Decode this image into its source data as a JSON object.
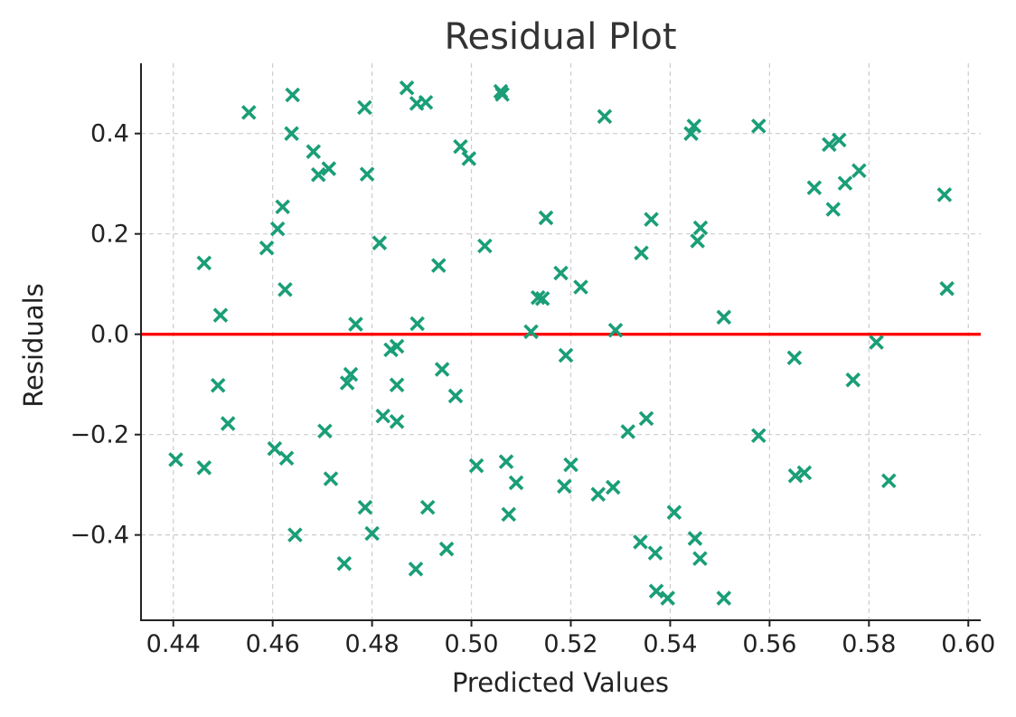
{
  "chart_data": {
    "type": "scatter",
    "title": "Residual Plot",
    "xlabel": "Predicted Values",
    "ylabel": "Residuals",
    "xlim": [
      0.4335,
      0.6025
    ],
    "ylim": [
      -0.57,
      0.54
    ],
    "x_ticks": [
      0.44,
      0.46,
      0.48,
      0.5,
      0.52,
      0.54,
      0.56,
      0.58,
      0.6
    ],
    "x_tick_labels": [
      "0.44",
      "0.46",
      "0.48",
      "0.50",
      "0.52",
      "0.54",
      "0.56",
      "0.58",
      "0.60"
    ],
    "y_ticks": [
      -0.4,
      -0.2,
      0.0,
      0.2,
      0.4
    ],
    "y_tick_labels": [
      "−0.4",
      "−0.2",
      "0.0",
      "0.2",
      "0.4"
    ],
    "grid": true,
    "marker": "x",
    "marker_color": "#1a9e77",
    "reference_line": {
      "y": 0.0,
      "color": "#ff0000"
    },
    "points": [
      [
        0.4405,
        -0.25
      ],
      [
        0.4462,
        0.142
      ],
      [
        0.4462,
        -0.266
      ],
      [
        0.449,
        -0.102
      ],
      [
        0.4495,
        0.038
      ],
      [
        0.451,
        -0.178
      ],
      [
        0.4552,
        0.442
      ],
      [
        0.4588,
        0.172
      ],
      [
        0.4604,
        -0.228
      ],
      [
        0.461,
        0.21
      ],
      [
        0.462,
        0.254
      ],
      [
        0.4625,
        0.089
      ],
      [
        0.4628,
        -0.247
      ],
      [
        0.4638,
        0.4
      ],
      [
        0.464,
        0.477
      ],
      [
        0.4645,
        -0.4
      ],
      [
        0.4682,
        0.364
      ],
      [
        0.4692,
        0.318
      ],
      [
        0.4705,
        -0.193
      ],
      [
        0.4713,
        0.33
      ],
      [
        0.4717,
        -0.288
      ],
      [
        0.4744,
        -0.457
      ],
      [
        0.475,
        -0.097
      ],
      [
        0.4757,
        -0.08
      ],
      [
        0.4767,
        0.02
      ],
      [
        0.4785,
        0.452
      ],
      [
        0.4786,
        -0.345
      ],
      [
        0.479,
        0.319
      ],
      [
        0.48,
        -0.397
      ],
      [
        0.4815,
        0.182
      ],
      [
        0.4822,
        -0.163
      ],
      [
        0.4838,
        -0.031
      ],
      [
        0.485,
        -0.024
      ],
      [
        0.485,
        -0.101
      ],
      [
        0.485,
        -0.174
      ],
      [
        0.487,
        0.491
      ],
      [
        0.4888,
        -0.468
      ],
      [
        0.489,
        0.46
      ],
      [
        0.4891,
        0.021
      ],
      [
        0.4908,
        0.462
      ],
      [
        0.4912,
        -0.345
      ],
      [
        0.4934,
        0.137
      ],
      [
        0.4941,
        -0.07
      ],
      [
        0.495,
        -0.428
      ],
      [
        0.4968,
        -0.123
      ],
      [
        0.4978,
        0.374
      ],
      [
        0.4995,
        0.35
      ],
      [
        0.501,
        -0.262
      ],
      [
        0.5027,
        0.176
      ],
      [
        0.5059,
        0.484
      ],
      [
        0.5062,
        0.478
      ],
      [
        0.507,
        -0.254
      ],
      [
        0.5075,
        -0.359
      ],
      [
        0.509,
        -0.296
      ],
      [
        0.512,
        0.005
      ],
      [
        0.5134,
        0.073
      ],
      [
        0.5143,
        0.071
      ],
      [
        0.515,
        0.232
      ],
      [
        0.518,
        0.122
      ],
      [
        0.5187,
        -0.303
      ],
      [
        0.519,
        -0.042
      ],
      [
        0.52,
        -0.26
      ],
      [
        0.522,
        0.094
      ],
      [
        0.5255,
        -0.319
      ],
      [
        0.5268,
        0.434
      ],
      [
        0.5285,
        -0.305
      ],
      [
        0.529,
        0.008
      ],
      [
        0.5315,
        -0.194
      ],
      [
        0.534,
        -0.414
      ],
      [
        0.5342,
        0.162
      ],
      [
        0.5352,
        -0.168
      ],
      [
        0.5362,
        0.229
      ],
      [
        0.537,
        -0.436
      ],
      [
        0.5372,
        -0.512
      ],
      [
        0.5395,
        -0.526
      ],
      [
        0.5408,
        -0.355
      ],
      [
        0.5442,
        0.4
      ],
      [
        0.5448,
        0.415
      ],
      [
        0.545,
        -0.407
      ],
      [
        0.5455,
        0.186
      ],
      [
        0.5461,
        0.212
      ],
      [
        0.546,
        -0.447
      ],
      [
        0.5508,
        0.034
      ],
      [
        0.5508,
        -0.526
      ],
      [
        0.5578,
        0.415
      ],
      [
        0.5578,
        -0.202
      ],
      [
        0.565,
        -0.047
      ],
      [
        0.5652,
        -0.282
      ],
      [
        0.567,
        -0.276
      ],
      [
        0.569,
        0.292
      ],
      [
        0.572,
        0.378
      ],
      [
        0.5728,
        0.249
      ],
      [
        0.574,
        0.387
      ],
      [
        0.5752,
        0.301
      ],
      [
        0.5768,
        -0.091
      ],
      [
        0.578,
        0.326
      ],
      [
        0.5815,
        -0.016
      ],
      [
        0.584,
        -0.292
      ],
      [
        0.5952,
        0.278
      ],
      [
        0.5957,
        0.091
      ]
    ]
  }
}
